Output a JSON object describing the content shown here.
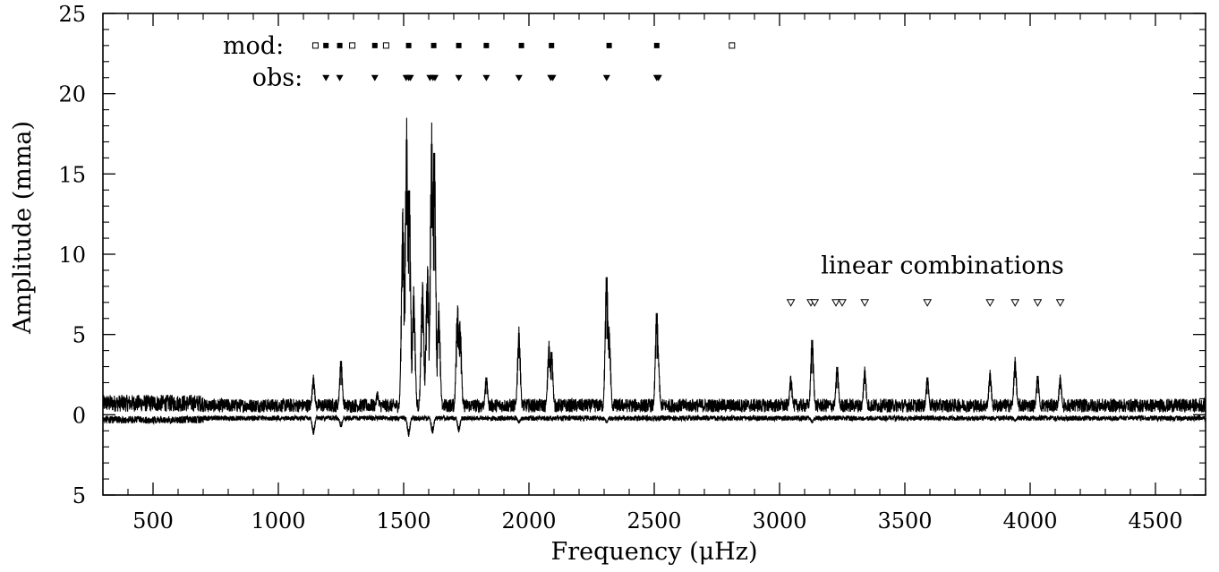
{
  "chart_data": {
    "type": "line",
    "title": "",
    "xlabel": "Frequency (μHz)",
    "ylabel": "Amplitude (mma)",
    "xlim": [
      300,
      4700
    ],
    "ylim": [
      -5,
      25
    ],
    "xticks": [
      500,
      1000,
      1500,
      2000,
      2500,
      3000,
      3500,
      4000,
      4500
    ],
    "yticks": [
      {
        "value": 25,
        "label": "25"
      },
      {
        "value": 20,
        "label": "20"
      },
      {
        "value": 15,
        "label": "15"
      },
      {
        "value": 10,
        "label": "10"
      },
      {
        "value": 5,
        "label": "5"
      },
      {
        "value": 0,
        "label": "0"
      },
      {
        "value": -5,
        "label": "5"
      }
    ],
    "grid": false,
    "colors": {
      "line": "#000000",
      "background": "#ffffff"
    },
    "series": [
      {
        "role": "observed-spectrum",
        "noise_level": 1.0,
        "peaks": [
          [
            1140,
            2.5
          ],
          [
            1250,
            3.6
          ],
          [
            1395,
            1.5
          ],
          [
            1497,
            13.2
          ],
          [
            1512,
            18.5
          ],
          [
            1522,
            15.0
          ],
          [
            1540,
            8.0
          ],
          [
            1575,
            8.5
          ],
          [
            1595,
            9.5
          ],
          [
            1612,
            18.2
          ],
          [
            1622,
            17.5
          ],
          [
            1640,
            7.0
          ],
          [
            1715,
            7.0
          ],
          [
            1725,
            6.0
          ],
          [
            1830,
            2.5
          ],
          [
            1960,
            5.5
          ],
          [
            2080,
            4.6
          ],
          [
            2090,
            4.2
          ],
          [
            2310,
            9.2
          ],
          [
            2320,
            5.5
          ],
          [
            2510,
            6.8
          ],
          [
            2515,
            4.0
          ],
          [
            3045,
            2.5
          ],
          [
            3130,
            5.0
          ],
          [
            3230,
            3.2
          ],
          [
            3340,
            3.0
          ],
          [
            3590,
            2.5
          ],
          [
            3840,
            2.8
          ],
          [
            3940,
            3.6
          ],
          [
            4030,
            2.6
          ],
          [
            4120,
            2.5
          ]
        ]
      },
      {
        "role": "residual-spectrum",
        "noise_level": 0.9,
        "peaks": [
          [
            1140,
            2.3
          ],
          [
            1250,
            1.5
          ],
          [
            1520,
            2.5
          ],
          [
            1615,
            2.2
          ],
          [
            1720,
            2.0
          ],
          [
            1960,
            1.0
          ],
          [
            2310,
            1.0
          ],
          [
            3130,
            1.0
          ],
          [
            3340,
            0.6
          ],
          [
            3940,
            0.8
          ]
        ]
      }
    ],
    "annotations": {
      "mod": {
        "label": "mod:",
        "y": 23,
        "filled": [
          1190,
          1245,
          1385,
          1520,
          1620,
          1720,
          1830,
          1970,
          2090,
          2320,
          2510
        ],
        "open": [
          1148,
          1295,
          1430,
          2810
        ]
      },
      "obs": {
        "label": "obs:",
        "y": 21,
        "markers": [
          1190,
          1245,
          1385,
          1510,
          1520,
          1527,
          1605,
          1617,
          1625,
          1720,
          1830,
          1960,
          2087,
          2095,
          2310,
          2510,
          2517
        ]
      },
      "linear_combinations": {
        "label": "linear combinations",
        "label_x": 3650,
        "label_y": 9.3,
        "y": 7.0,
        "markers": [
          3045,
          3125,
          3140,
          3225,
          3250,
          3340,
          3590,
          3840,
          3940,
          4030,
          4120
        ]
      }
    }
  }
}
